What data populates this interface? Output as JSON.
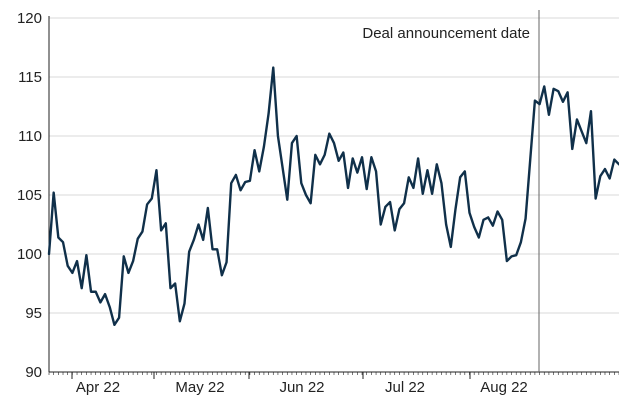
{
  "chart_data": {
    "type": "line",
    "title": "",
    "xlabel": "",
    "ylabel": "",
    "ylim": [
      90,
      120
    ],
    "yticks": [
      90,
      95,
      100,
      105,
      110,
      115,
      120
    ],
    "ytick_labels": [
      "90",
      "95",
      "100",
      "105",
      "110",
      "115",
      "120"
    ],
    "grid": "horizontal",
    "x_tick_labels": [
      "Apr 22",
      "May 22",
      "Jun 22",
      "Jul 22",
      "Aug 22"
    ],
    "annotation": {
      "label": "Deal announcement date"
    },
    "colors": {
      "line": "#10304a",
      "grid": "#d9d9d9",
      "axis": "#222222",
      "marker": "#666666"
    },
    "series": [
      {
        "values": [
          100.0,
          105.2,
          101.4,
          101.0,
          99.0,
          98.4,
          99.4,
          97.1,
          99.9,
          96.8,
          96.8,
          95.9,
          96.6,
          95.5,
          94.0,
          94.6,
          99.8,
          98.4,
          99.4,
          101.3,
          101.9,
          104.2,
          104.7,
          107.1,
          102.0,
          102.6,
          97.1,
          97.5,
          94.3,
          95.8,
          100.2,
          101.2,
          102.5,
          101.2,
          103.9,
          100.4,
          100.4,
          98.2,
          99.3,
          106.0,
          106.7,
          105.4,
          106.1,
          106.2,
          108.8,
          107.0,
          109.1,
          111.9,
          115.8,
          110.0,
          107.3,
          104.6,
          109.4,
          110.0,
          106.0,
          105.0,
          104.3,
          108.4,
          107.6,
          108.4,
          110.2,
          109.4,
          107.9,
          108.6,
          105.6,
          108.1,
          106.9,
          108.2,
          105.5,
          108.2,
          107.0,
          102.5,
          104.0,
          104.4,
          102.0,
          103.8,
          104.3,
          106.5,
          105.6,
          108.1,
          105.1,
          107.1,
          105.1,
          107.6,
          106.0,
          102.5,
          100.6,
          103.8,
          106.5,
          107.0,
          103.5,
          102.3,
          101.4,
          102.9,
          103.1,
          102.4,
          103.6,
          102.9,
          99.4,
          99.8,
          99.9,
          101.0,
          103.0,
          108.0,
          113.0,
          112.7,
          114.2,
          111.8,
          114.0,
          113.8,
          112.9,
          113.7,
          108.9,
          111.4,
          110.4,
          109.4,
          112.1,
          104.7,
          106.6,
          107.2,
          106.4,
          108.0,
          107.6
        ]
      }
    ]
  }
}
